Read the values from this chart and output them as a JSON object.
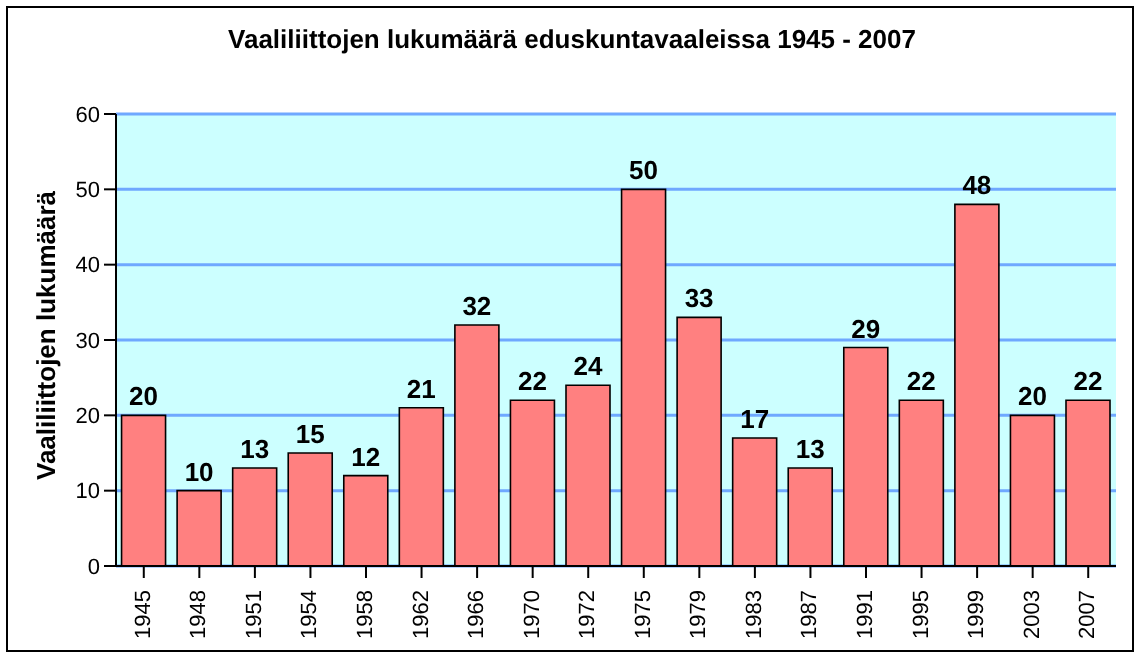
{
  "chart_data": {
    "type": "bar",
    "title": "Vaaliliittojen lukumäärä eduskuntavaaleissa 1945 - 2007",
    "ylabel": "Vaaliliittojen lukumäärä",
    "categories": [
      "1945",
      "1948",
      "1951",
      "1954",
      "1958",
      "1962",
      "1966",
      "1970",
      "1972",
      "1975",
      "1979",
      "1983",
      "1987",
      "1991",
      "1995",
      "1999",
      "2003",
      "2007"
    ],
    "values": [
      20,
      10,
      13,
      15,
      12,
      21,
      32,
      22,
      24,
      50,
      33,
      17,
      13,
      29,
      22,
      48,
      20,
      22
    ],
    "color": "#ff8080",
    "ylim": [
      0,
      60
    ],
    "yticks": [
      0,
      10,
      20,
      30,
      40,
      50,
      60
    ],
    "grid": "y",
    "data_labels": true
  }
}
